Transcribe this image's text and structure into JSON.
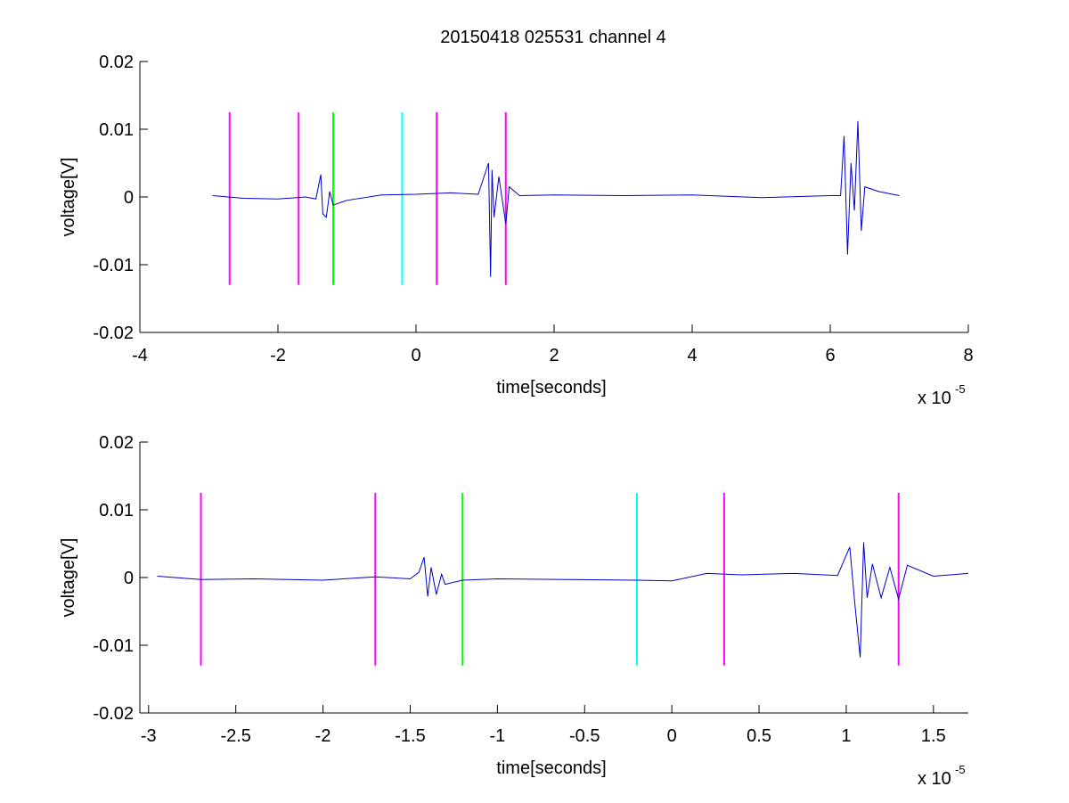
{
  "figure_title": "20150418 025531 channel 4",
  "colors": {
    "background": "#ffffff",
    "axes": "#000000",
    "trace": "#0000c8",
    "marker_magenta": "#ff00ff",
    "marker_green": "#00ff00",
    "marker_cyan": "#00ffff"
  },
  "chart_data": [
    {
      "type": "line",
      "title": "20150418 025531 channel 4",
      "xlabel": "time[seconds]",
      "ylabel": "voltage[V]",
      "x_scale_text": "x 10",
      "x_scale_exponent": "-5",
      "xlim": [
        -4,
        8
      ],
      "ylim": [
        -0.02,
        0.02
      ],
      "xticks": [
        -4,
        -2,
        0,
        2,
        4,
        6,
        8
      ],
      "xtick_labels": [
        "-4",
        "-2",
        "0",
        "2",
        "4",
        "6",
        "8"
      ],
      "yticks": [
        -0.02,
        -0.01,
        0,
        0.01,
        0.02
      ],
      "ytick_labels": [
        "-0.02",
        "-0.01",
        "0",
        "0.01",
        "0.02"
      ],
      "grid": false,
      "series": [
        {
          "color": "#0000c8",
          "x": [
            -2.95,
            -2.5,
            -2.0,
            -1.6,
            -1.45,
            -1.38,
            -1.35,
            -1.3,
            -1.25,
            -1.2,
            -1.0,
            -0.5,
            0.0,
            0.5,
            0.9,
            1.05,
            1.08,
            1.1,
            1.13,
            1.2,
            1.3,
            1.35,
            1.5,
            2.0,
            3.0,
            4.0,
            5.0,
            6.0,
            6.15,
            6.2,
            6.25,
            6.3,
            6.35,
            6.4,
            6.45,
            6.5,
            6.7,
            7.0
          ],
          "y": [
            0.0002,
            -0.0002,
            -0.0003,
            0.0,
            -0.0003,
            0.0033,
            -0.0025,
            -0.003,
            0.0008,
            -0.0012,
            -0.0005,
            0.0003,
            0.0004,
            0.0006,
            0.0004,
            0.005,
            -0.0118,
            0.004,
            -0.003,
            0.003,
            -0.004,
            0.0015,
            0.0002,
            0.0003,
            0.0002,
            0.0003,
            -0.0001,
            0.0002,
            0.0002,
            0.009,
            -0.0085,
            0.005,
            -0.002,
            0.0112,
            -0.005,
            0.0015,
            0.0008,
            0.0002
          ]
        }
      ],
      "markers": [
        {
          "x": -2.7,
          "color": "#ff00ff",
          "ymin": -0.013,
          "ymax": 0.0125
        },
        {
          "x": -1.7,
          "color": "#ff00ff",
          "ymin": -0.013,
          "ymax": 0.0125
        },
        {
          "x": -1.2,
          "color": "#00ff00",
          "ymin": -0.013,
          "ymax": 0.0125
        },
        {
          "x": -0.2,
          "color": "#00ffff",
          "ymin": -0.013,
          "ymax": 0.0125
        },
        {
          "x": 0.3,
          "color": "#ff00ff",
          "ymin": -0.013,
          "ymax": 0.0125
        },
        {
          "x": 1.3,
          "color": "#ff00ff",
          "ymin": -0.013,
          "ymax": 0.0125
        }
      ]
    },
    {
      "type": "line",
      "title": "",
      "xlabel": "time[seconds]",
      "ylabel": "voltage[V]",
      "x_scale_text": "x 10",
      "x_scale_exponent": "-5",
      "xlim": [
        -3.05,
        1.7
      ],
      "ylim": [
        -0.02,
        0.02
      ],
      "xticks": [
        -3,
        -2.5,
        -2,
        -1.5,
        -1,
        -0.5,
        0,
        0.5,
        1,
        1.5
      ],
      "xtick_labels": [
        "-3",
        "-2.5",
        "-2",
        "-1.5",
        "-1",
        "-0.5",
        "0",
        "0.5",
        "1",
        "1.5"
      ],
      "yticks": [
        -0.02,
        -0.01,
        0,
        0.01,
        0.02
      ],
      "ytick_labels": [
        "-0.02",
        "-0.01",
        "0",
        "0.01",
        "0.02"
      ],
      "grid": false,
      "series": [
        {
          "color": "#0000c8",
          "x": [
            -2.95,
            -2.7,
            -2.4,
            -2.0,
            -1.7,
            -1.5,
            -1.45,
            -1.42,
            -1.4,
            -1.38,
            -1.35,
            -1.32,
            -1.3,
            -1.2,
            -1.0,
            -0.6,
            -0.2,
            0.0,
            0.2,
            0.4,
            0.7,
            0.95,
            1.02,
            1.05,
            1.08,
            1.1,
            1.12,
            1.15,
            1.2,
            1.25,
            1.3,
            1.35,
            1.5,
            1.7
          ],
          "y": [
            0.0002,
            -0.0003,
            -0.0002,
            -0.0004,
            0.0001,
            -0.0002,
            0.0008,
            0.003,
            -0.0028,
            0.0015,
            -0.0025,
            0.0005,
            -0.001,
            -0.0004,
            -0.0002,
            -0.0003,
            -0.0004,
            -0.0005,
            0.0006,
            0.0004,
            0.0006,
            0.0003,
            0.0045,
            -0.004,
            -0.0118,
            0.0052,
            -0.003,
            0.002,
            -0.003,
            0.0015,
            -0.0032,
            0.0018,
            0.0002,
            0.0006
          ]
        }
      ],
      "markers": [
        {
          "x": -2.7,
          "color": "#ff00ff",
          "ymin": -0.013,
          "ymax": 0.0125
        },
        {
          "x": -1.7,
          "color": "#ff00ff",
          "ymin": -0.013,
          "ymax": 0.0125
        },
        {
          "x": -1.2,
          "color": "#00ff00",
          "ymin": -0.013,
          "ymax": 0.0125
        },
        {
          "x": -0.2,
          "color": "#00ffff",
          "ymin": -0.013,
          "ymax": 0.0125
        },
        {
          "x": 0.3,
          "color": "#ff00ff",
          "ymin": -0.013,
          "ymax": 0.0125
        },
        {
          "x": 1.3,
          "color": "#ff00ff",
          "ymin": -0.013,
          "ymax": 0.0125
        }
      ]
    }
  ]
}
